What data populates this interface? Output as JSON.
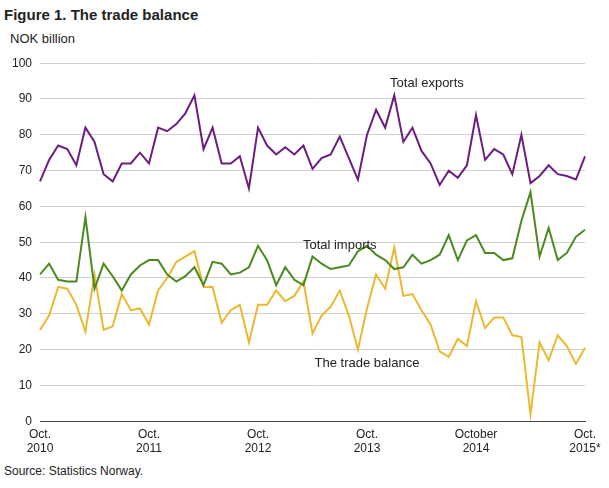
{
  "chart_data": {
    "type": "line",
    "title": "Figure 1. The trade balance",
    "y_label": "NOK billion",
    "source": "Source: Statistics Norway.",
    "categories": [
      "Oct. 2010",
      null,
      null,
      null,
      null,
      null,
      null,
      null,
      null,
      null,
      null,
      null,
      "Oct. 2011",
      null,
      null,
      null,
      null,
      null,
      null,
      null,
      null,
      null,
      null,
      null,
      "Oct. 2012",
      null,
      null,
      null,
      null,
      null,
      null,
      null,
      null,
      null,
      null,
      null,
      "Oct. 2013",
      null,
      null,
      null,
      null,
      null,
      null,
      null,
      null,
      null,
      null,
      null,
      "October 2014",
      null,
      null,
      null,
      null,
      null,
      null,
      null,
      null,
      null,
      null,
      null,
      "Oct. 2015*"
    ],
    "series": [
      {
        "name": "Total exports",
        "color": "#6b1e80",
        "values": [
          67,
          73,
          77,
          76,
          71.5,
          82,
          78,
          69,
          67,
          72,
          72,
          75,
          72,
          82,
          81,
          83,
          86,
          91,
          76,
          82,
          72,
          72,
          74,
          65,
          82,
          77,
          74.5,
          76.5,
          74.5,
          77,
          70.5,
          73.5,
          74.5,
          79.5,
          73.5,
          67.5,
          80,
          87,
          82,
          91,
          78,
          82,
          75.5,
          72,
          66,
          70,
          68,
          71.5,
          85.5,
          73,
          76,
          74.5,
          69,
          80,
          66.5,
          68.5,
          71.5,
          69,
          68.5,
          67.5,
          74
        ]
      },
      {
        "name": "Total imports",
        "color": "#4a8a1f",
        "values": [
          41,
          44,
          39.5,
          39,
          39,
          57,
          37,
          44,
          40.5,
          36.5,
          41,
          43.5,
          45,
          45,
          41,
          39,
          40.5,
          43,
          38,
          44.5,
          44,
          41,
          41.5,
          43,
          49,
          45,
          38,
          43,
          39.5,
          38,
          46,
          44,
          42.5,
          43,
          43.5,
          47.5,
          49,
          46.5,
          45,
          42.5,
          43,
          46.5,
          44,
          45,
          46.5,
          52,
          45,
          50.5,
          52,
          47,
          47,
          45,
          45.5,
          56,
          64,
          46,
          54,
          45,
          47,
          51.5,
          53.5
        ]
      },
      {
        "name": "The trade balance",
        "color": "#ecb830",
        "values": [
          25.5,
          29.5,
          37.5,
          37,
          32.5,
          25,
          41,
          25.5,
          26.5,
          35.5,
          31,
          31.5,
          27,
          36.5,
          40,
          44.5,
          46,
          47.5,
          37.5,
          37.5,
          27.5,
          31,
          32.5,
          22,
          32.5,
          32.5,
          36.5,
          33.5,
          35,
          39,
          24.5,
          29.5,
          32,
          36.5,
          29.5,
          20,
          31.5,
          41,
          37,
          48.5,
          35,
          35.5,
          31,
          27,
          19.5,
          18,
          23,
          21,
          33.5,
          26,
          29,
          29,
          24,
          23.5,
          2,
          22,
          17,
          24,
          21,
          16,
          20.5
        ]
      }
    ],
    "ylim": [
      0,
      100
    ],
    "yticks": [
      0,
      10,
      20,
      30,
      40,
      50,
      60,
      70,
      80,
      90,
      100
    ],
    "grid": true
  }
}
